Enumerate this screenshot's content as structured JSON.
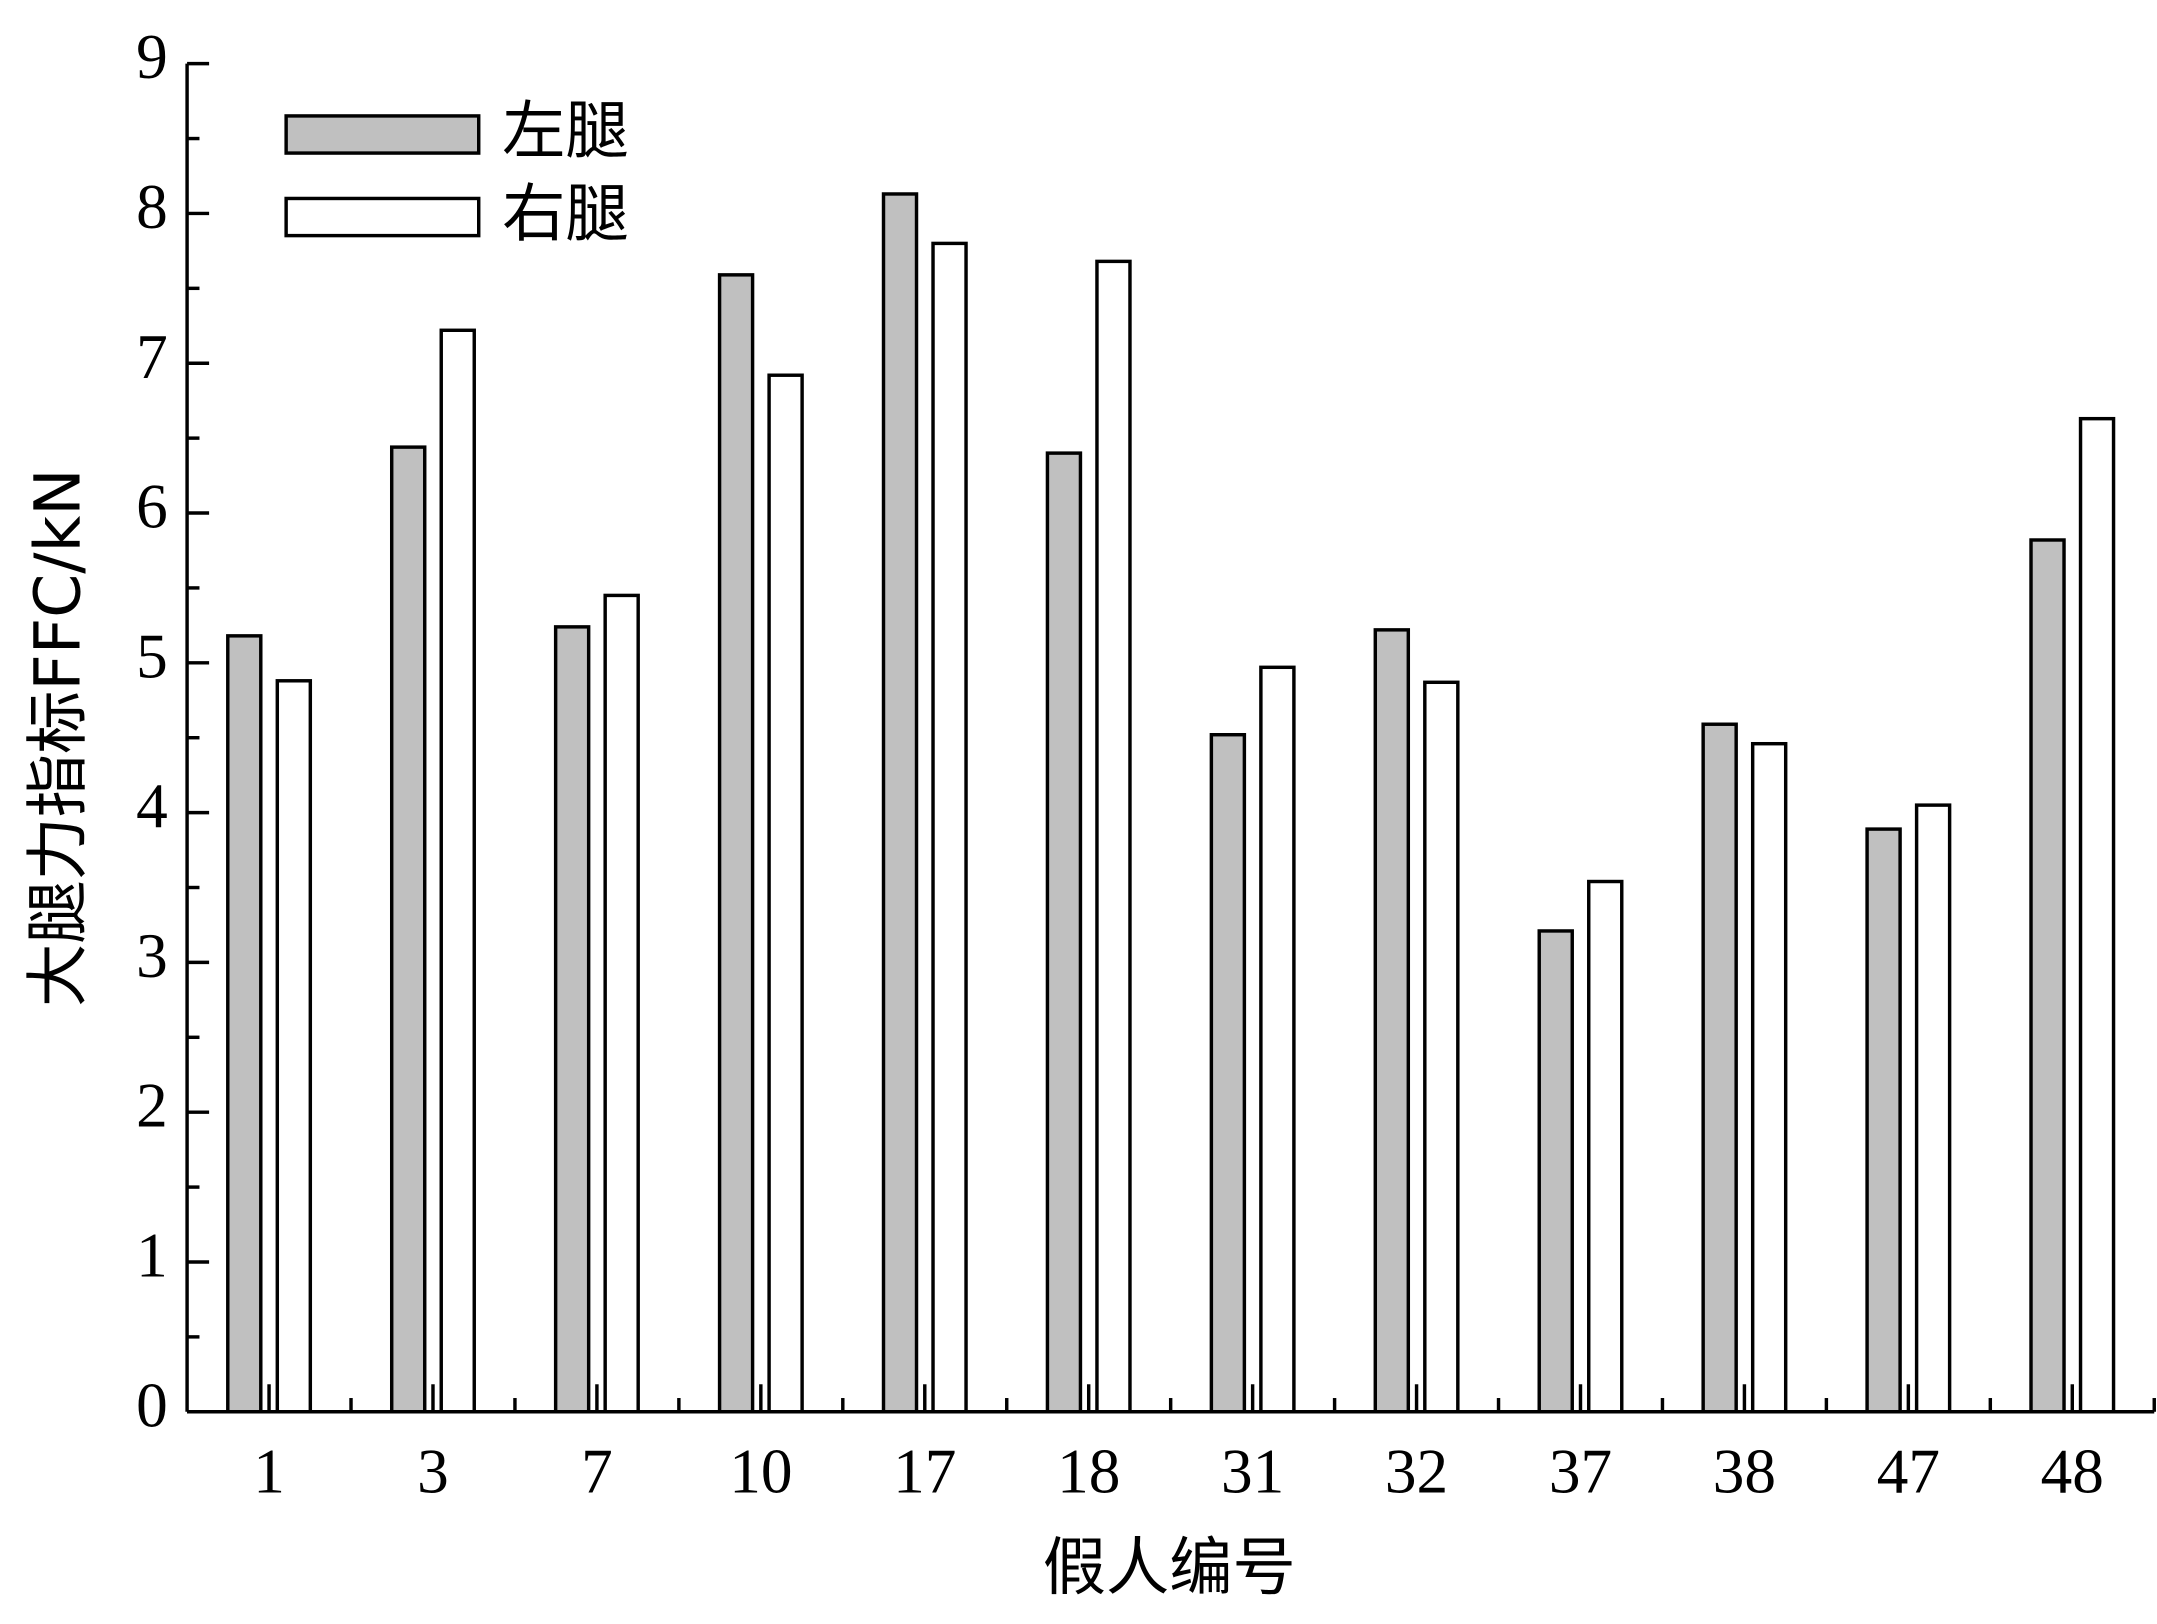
{
  "chart_data": {
    "type": "bar",
    "x_label": "假人编号",
    "y_label": "大腿力指标FFC/kN",
    "categories": [
      "1",
      "3",
      "7",
      "10",
      "17",
      "18",
      "31",
      "32",
      "37",
      "38",
      "47",
      "48"
    ],
    "series": [
      {
        "name": "左腿",
        "color": "#c0c0c0",
        "values": [
          5.18,
          6.44,
          5.24,
          7.59,
          8.13,
          6.4,
          4.52,
          5.22,
          3.21,
          4.59,
          3.89,
          5.82
        ]
      },
      {
        "name": "右腿",
        "color": "#ffffff",
        "values": [
          4.88,
          7.22,
          5.45,
          6.92,
          7.8,
          7.68,
          4.97,
          4.87,
          3.54,
          4.46,
          4.05,
          6.63
        ]
      }
    ],
    "ylim": [
      0,
      9
    ],
    "yticks": [
      0,
      1,
      2,
      3,
      4,
      5,
      6,
      7,
      8,
      9
    ],
    "legend": "upper left",
    "grid": false
  }
}
